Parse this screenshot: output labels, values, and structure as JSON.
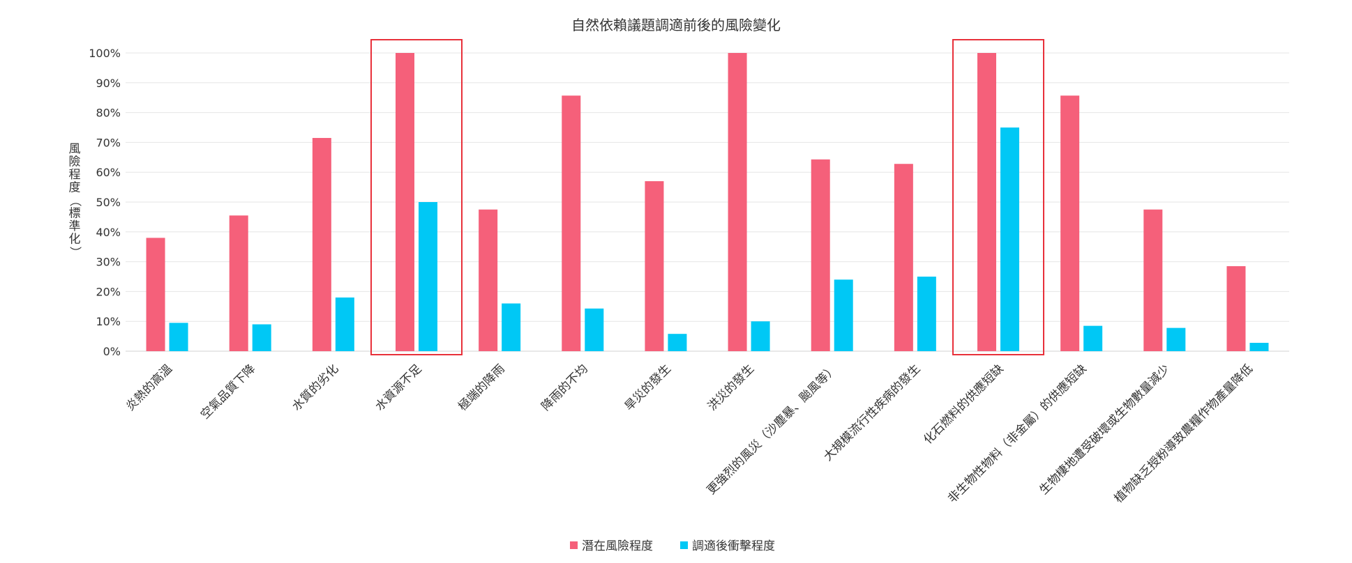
{
  "chart_data": {
    "type": "bar",
    "title": "自然依賴議題調適前後的風險變化",
    "ylabel": "風險程度（標準化）",
    "ylim": [
      0,
      100
    ],
    "y_ticks": [
      "0%",
      "10%",
      "20%",
      "30%",
      "40%",
      "50%",
      "60%",
      "70%",
      "80%",
      "90%",
      "100%"
    ],
    "categories": [
      "炎熱的高溫",
      "空氣品質下降",
      "水質的劣化",
      "水資源不足",
      "極端的降雨",
      "降雨的不均",
      "旱災的發生",
      "洪災的發生",
      "更強烈的風災（沙塵暴、颱風等）",
      "大規模流行性疾病的發生",
      "化石燃料的供應短缺",
      "非生物性物料（非金屬）的供應短缺",
      "生物棲地遭受破壞或生物數量減少",
      "植物缺乏授粉導致農糧作物產量降低"
    ],
    "series": [
      {
        "name": "潛在風險程度",
        "color": "#f5607a",
        "values": [
          38,
          45.5,
          71.5,
          100,
          47.5,
          85.7,
          57,
          100,
          64.3,
          62.8,
          100,
          85.7,
          47.5,
          28.5
        ]
      },
      {
        "name": "調適後衝擊程度",
        "color": "#00c8f5",
        "values": [
          9.5,
          9,
          18,
          50,
          16,
          14.3,
          5.8,
          10,
          24,
          25,
          75,
          8.5,
          7.8,
          2.8
        ]
      }
    ],
    "highlighted_categories": [
      "水資源不足",
      "化石燃料的供應短缺"
    ],
    "highlight_color": "#e8303a",
    "grid": true,
    "legend_position": "bottom-center"
  }
}
